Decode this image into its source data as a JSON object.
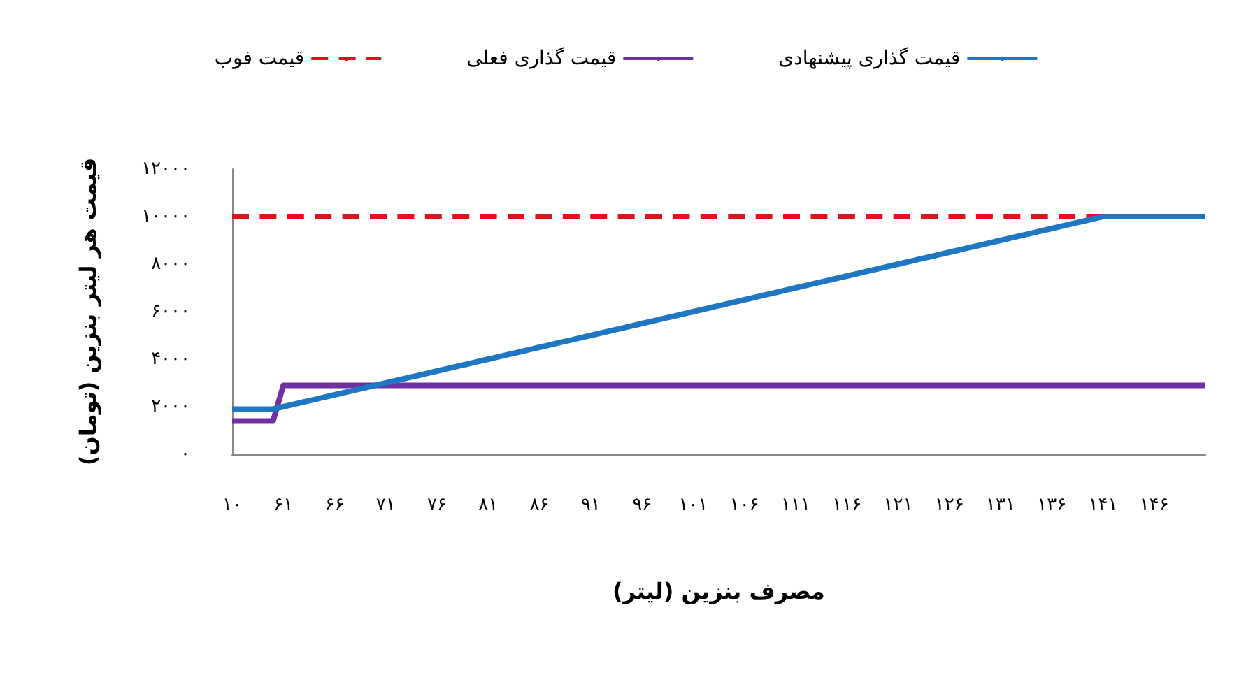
{
  "chart_data": {
    "type": "line",
    "xlabel": "مصرف بنزین (لیتر)",
    "ylabel": "قیمت هر لیتر بنزین (تومان)",
    "categories": [
      "۱۰",
      null,
      null,
      null,
      null,
      "۶۱",
      null,
      null,
      null,
      null,
      "۶۶",
      null,
      null,
      null,
      null,
      "۷۱",
      null,
      null,
      null,
      null,
      "۷۶",
      null,
      null,
      null,
      null,
      "۸۱",
      null,
      null,
      null,
      null,
      "۸۶",
      null,
      null,
      null,
      null,
      "۹۱",
      null,
      null,
      null,
      null,
      "۹۶",
      null,
      null,
      null,
      null,
      "۱۰۱",
      null,
      null,
      null,
      null,
      "۱۰۶",
      null,
      null,
      null,
      null,
      "۱۱۱",
      null,
      null,
      null,
      null,
      "۱۱۶",
      null,
      null,
      null,
      null,
      "۱۲۱",
      null,
      null,
      null,
      null,
      "۱۲۶",
      null,
      null,
      null,
      null,
      "۱۳۱",
      null,
      null,
      null,
      null,
      "۱۳۶",
      null,
      null,
      null,
      null,
      "۱۴۱",
      null,
      null,
      null,
      null,
      "۱۴۶",
      null,
      null,
      null,
      null,
      null
    ],
    "series": [
      {
        "name": "قیمت گذاری پیشنهادی",
        "color": "#1f77c4",
        "line_style": "solid",
        "values": [
          1900,
          1900,
          1900,
          1900,
          1900,
          2000,
          2100,
          2200,
          2300,
          2400,
          2500,
          2600,
          2700,
          2800,
          2900,
          3000,
          3100,
          3200,
          3300,
          3400,
          3500,
          3600,
          3700,
          3800,
          3900,
          4000,
          4100,
          4200,
          4300,
          4400,
          4500,
          4600,
          4700,
          4800,
          4900,
          5000,
          5100,
          5200,
          5300,
          5400,
          5500,
          5600,
          5700,
          5800,
          5900,
          6000,
          6100,
          6200,
          6300,
          6400,
          6500,
          6600,
          6700,
          6800,
          6900,
          7000,
          7100,
          7200,
          7300,
          7400,
          7500,
          7600,
          7700,
          7800,
          7900,
          8000,
          8100,
          8200,
          8300,
          8400,
          8500,
          8600,
          8700,
          8800,
          8900,
          9000,
          9100,
          9200,
          9300,
          9400,
          9500,
          9600,
          9700,
          9800,
          9900,
          10000,
          10000,
          10000,
          10000,
          10000,
          10000,
          10000,
          10000,
          10000,
          10000,
          10000
        ]
      },
      {
        "name": "قیمت گذاری فعلی",
        "color": "#7030a0",
        "line_style": "solid",
        "values": [
          1400,
          1400,
          1400,
          1400,
          1400,
          2900,
          2900,
          2900,
          2900,
          2900,
          2900,
          2900,
          2900,
          2900,
          2900,
          2900,
          2900,
          2900,
          2900,
          2900,
          2900,
          2900,
          2900,
          2900,
          2900,
          2900,
          2900,
          2900,
          2900,
          2900,
          2900,
          2900,
          2900,
          2900,
          2900,
          2900,
          2900,
          2900,
          2900,
          2900,
          2900,
          2900,
          2900,
          2900,
          2900,
          2900,
          2900,
          2900,
          2900,
          2900,
          2900,
          2900,
          2900,
          2900,
          2900,
          2900,
          2900,
          2900,
          2900,
          2900,
          2900,
          2900,
          2900,
          2900,
          2900,
          2900,
          2900,
          2900,
          2900,
          2900,
          2900,
          2900,
          2900,
          2900,
          2900,
          2900,
          2900,
          2900,
          2900,
          2900,
          2900,
          2900,
          2900,
          2900,
          2900,
          2900,
          2900,
          2900,
          2900,
          2900,
          2900,
          2900,
          2900,
          2900,
          2900,
          2900
        ]
      },
      {
        "name": "قیمت فوب",
        "color": "#e0101e",
        "line_style": "dashed",
        "values": [
          10000,
          10000,
          10000,
          10000,
          10000,
          10000,
          10000,
          10000,
          10000,
          10000,
          10000,
          10000,
          10000,
          10000,
          10000,
          10000,
          10000,
          10000,
          10000,
          10000,
          10000,
          10000,
          10000,
          10000,
          10000,
          10000,
          10000,
          10000,
          10000,
          10000,
          10000,
          10000,
          10000,
          10000,
          10000,
          10000,
          10000,
          10000,
          10000,
          10000,
          10000,
          10000,
          10000,
          10000,
          10000,
          10000,
          10000,
          10000,
          10000,
          10000,
          10000,
          10000,
          10000,
          10000,
          10000,
          10000,
          10000,
          10000,
          10000,
          10000,
          10000,
          10000,
          10000,
          10000,
          10000,
          10000,
          10000,
          10000,
          10000,
          10000,
          10000,
          10000,
          10000,
          10000,
          10000,
          10000,
          10000,
          10000,
          10000,
          10000,
          10000,
          10000,
          10000,
          10000,
          10000,
          10000,
          null,
          null,
          null,
          null,
          null,
          null,
          null,
          null,
          null,
          null
        ]
      }
    ],
    "ylim": [
      0,
      12000
    ],
    "yticks": [
      {
        "value": 0,
        "label": "۰"
      },
      {
        "value": 2000,
        "label": "۲۰۰۰"
      },
      {
        "value": 4000,
        "label": "۴۰۰۰"
      },
      {
        "value": 6000,
        "label": "۶۰۰۰"
      },
      {
        "value": 8000,
        "label": "۸۰۰۰"
      },
      {
        "value": 10000,
        "label": "۱۰۰۰۰"
      },
      {
        "value": 12000,
        "label": "۱۲۰۰۰"
      }
    ],
    "grid": false,
    "legend": "top",
    "marker": "none"
  }
}
